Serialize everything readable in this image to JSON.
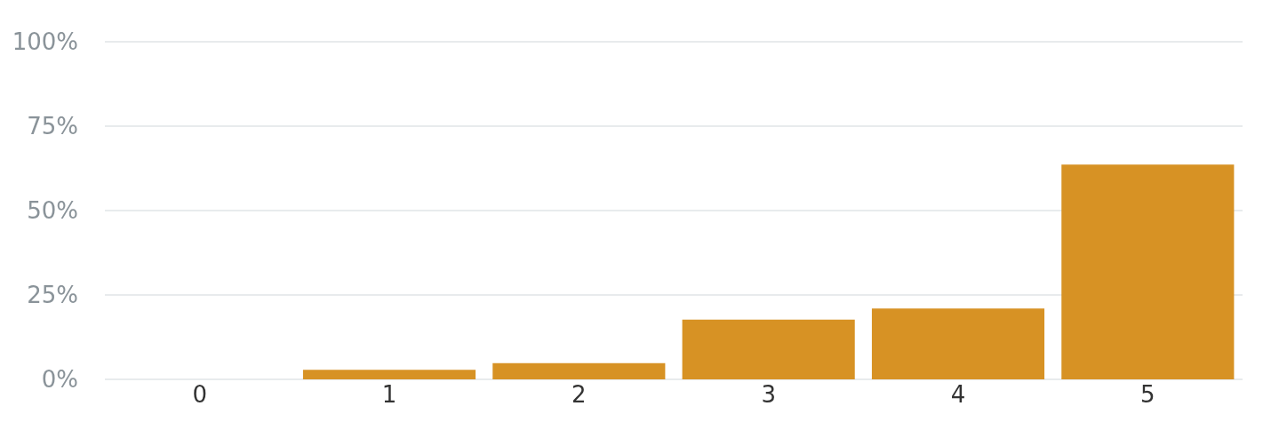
{
  "chart_data": {
    "type": "bar",
    "categories": [
      "0",
      "1",
      "2",
      "3",
      "4",
      "5"
    ],
    "values": [
      0,
      2.8,
      4.8,
      17.7,
      21,
      63.6
    ],
    "color": "#d79224",
    "ylim": [
      0,
      100
    ],
    "yticks": [
      {
        "value": 0,
        "label": "0%"
      },
      {
        "value": 25,
        "label": "25%"
      },
      {
        "value": 50,
        "label": "50%"
      },
      {
        "value": 75,
        "label": "75%"
      },
      {
        "value": 100,
        "label": "100%"
      }
    ],
    "grid": "y"
  }
}
